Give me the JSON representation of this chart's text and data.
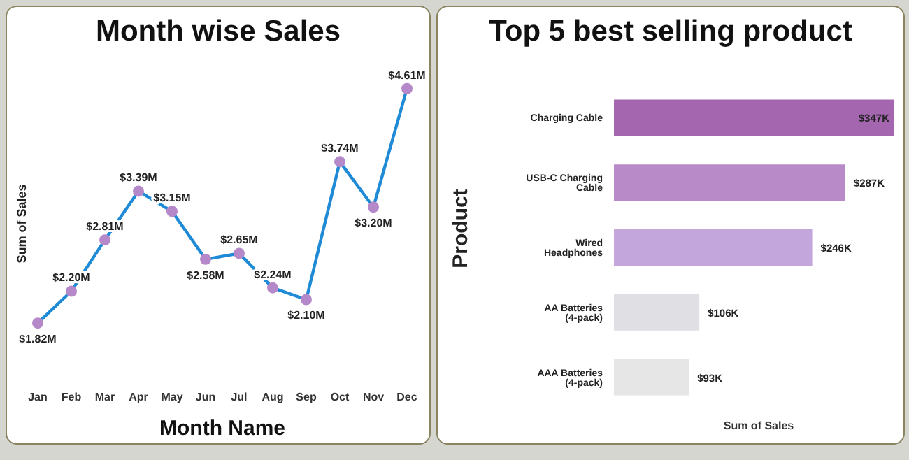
{
  "chart_data": [
    {
      "type": "line",
      "title": "Month wise Sales",
      "xlabel": "Month Name",
      "ylabel": "Sum of Sales",
      "categories": [
        "Jan",
        "Feb",
        "Mar",
        "Apr",
        "May",
        "Jun",
        "Jul",
        "Aug",
        "Sep",
        "Oct",
        "Nov",
        "Dec"
      ],
      "series": [
        {
          "color": "#1f8ad6",
          "values": [
            1.82,
            2.2,
            2.81,
            3.39,
            3.15,
            2.58,
            2.65,
            2.24,
            2.1,
            3.74,
            3.2,
            4.61
          ],
          "value_labels": [
            "$1.82M",
            "$2.20M",
            "$2.81M",
            "$3.39M",
            "$3.15M",
            "$2.58M",
            "$2.65M",
            "$2.24M",
            "$2.10M",
            "$3.74M",
            "$3.20M",
            "$4.61M"
          ]
        }
      ],
      "marker": "circle"
    },
    {
      "type": "bar",
      "orientation": "horizontal",
      "title": "Top 5 best selling product",
      "xlabel": "Sum of Sales",
      "ylabel": "Product",
      "categories": [
        "Charging Cable",
        "USB-C Charging Cable",
        "Wired Headphones",
        "AA Batteries (4-pack)",
        "AAA Batteries (4-pack)"
      ],
      "values": [
        347,
        287,
        246,
        106,
        93
      ],
      "value_labels": [
        "$347K",
        "$287K",
        "$246K",
        "$106K",
        "$93K"
      ],
      "colors": [
        "#a566b0",
        "#b88ac8",
        "#c3a6dc",
        "#e0e0e4",
        "#e6e6e6"
      ]
    }
  ]
}
